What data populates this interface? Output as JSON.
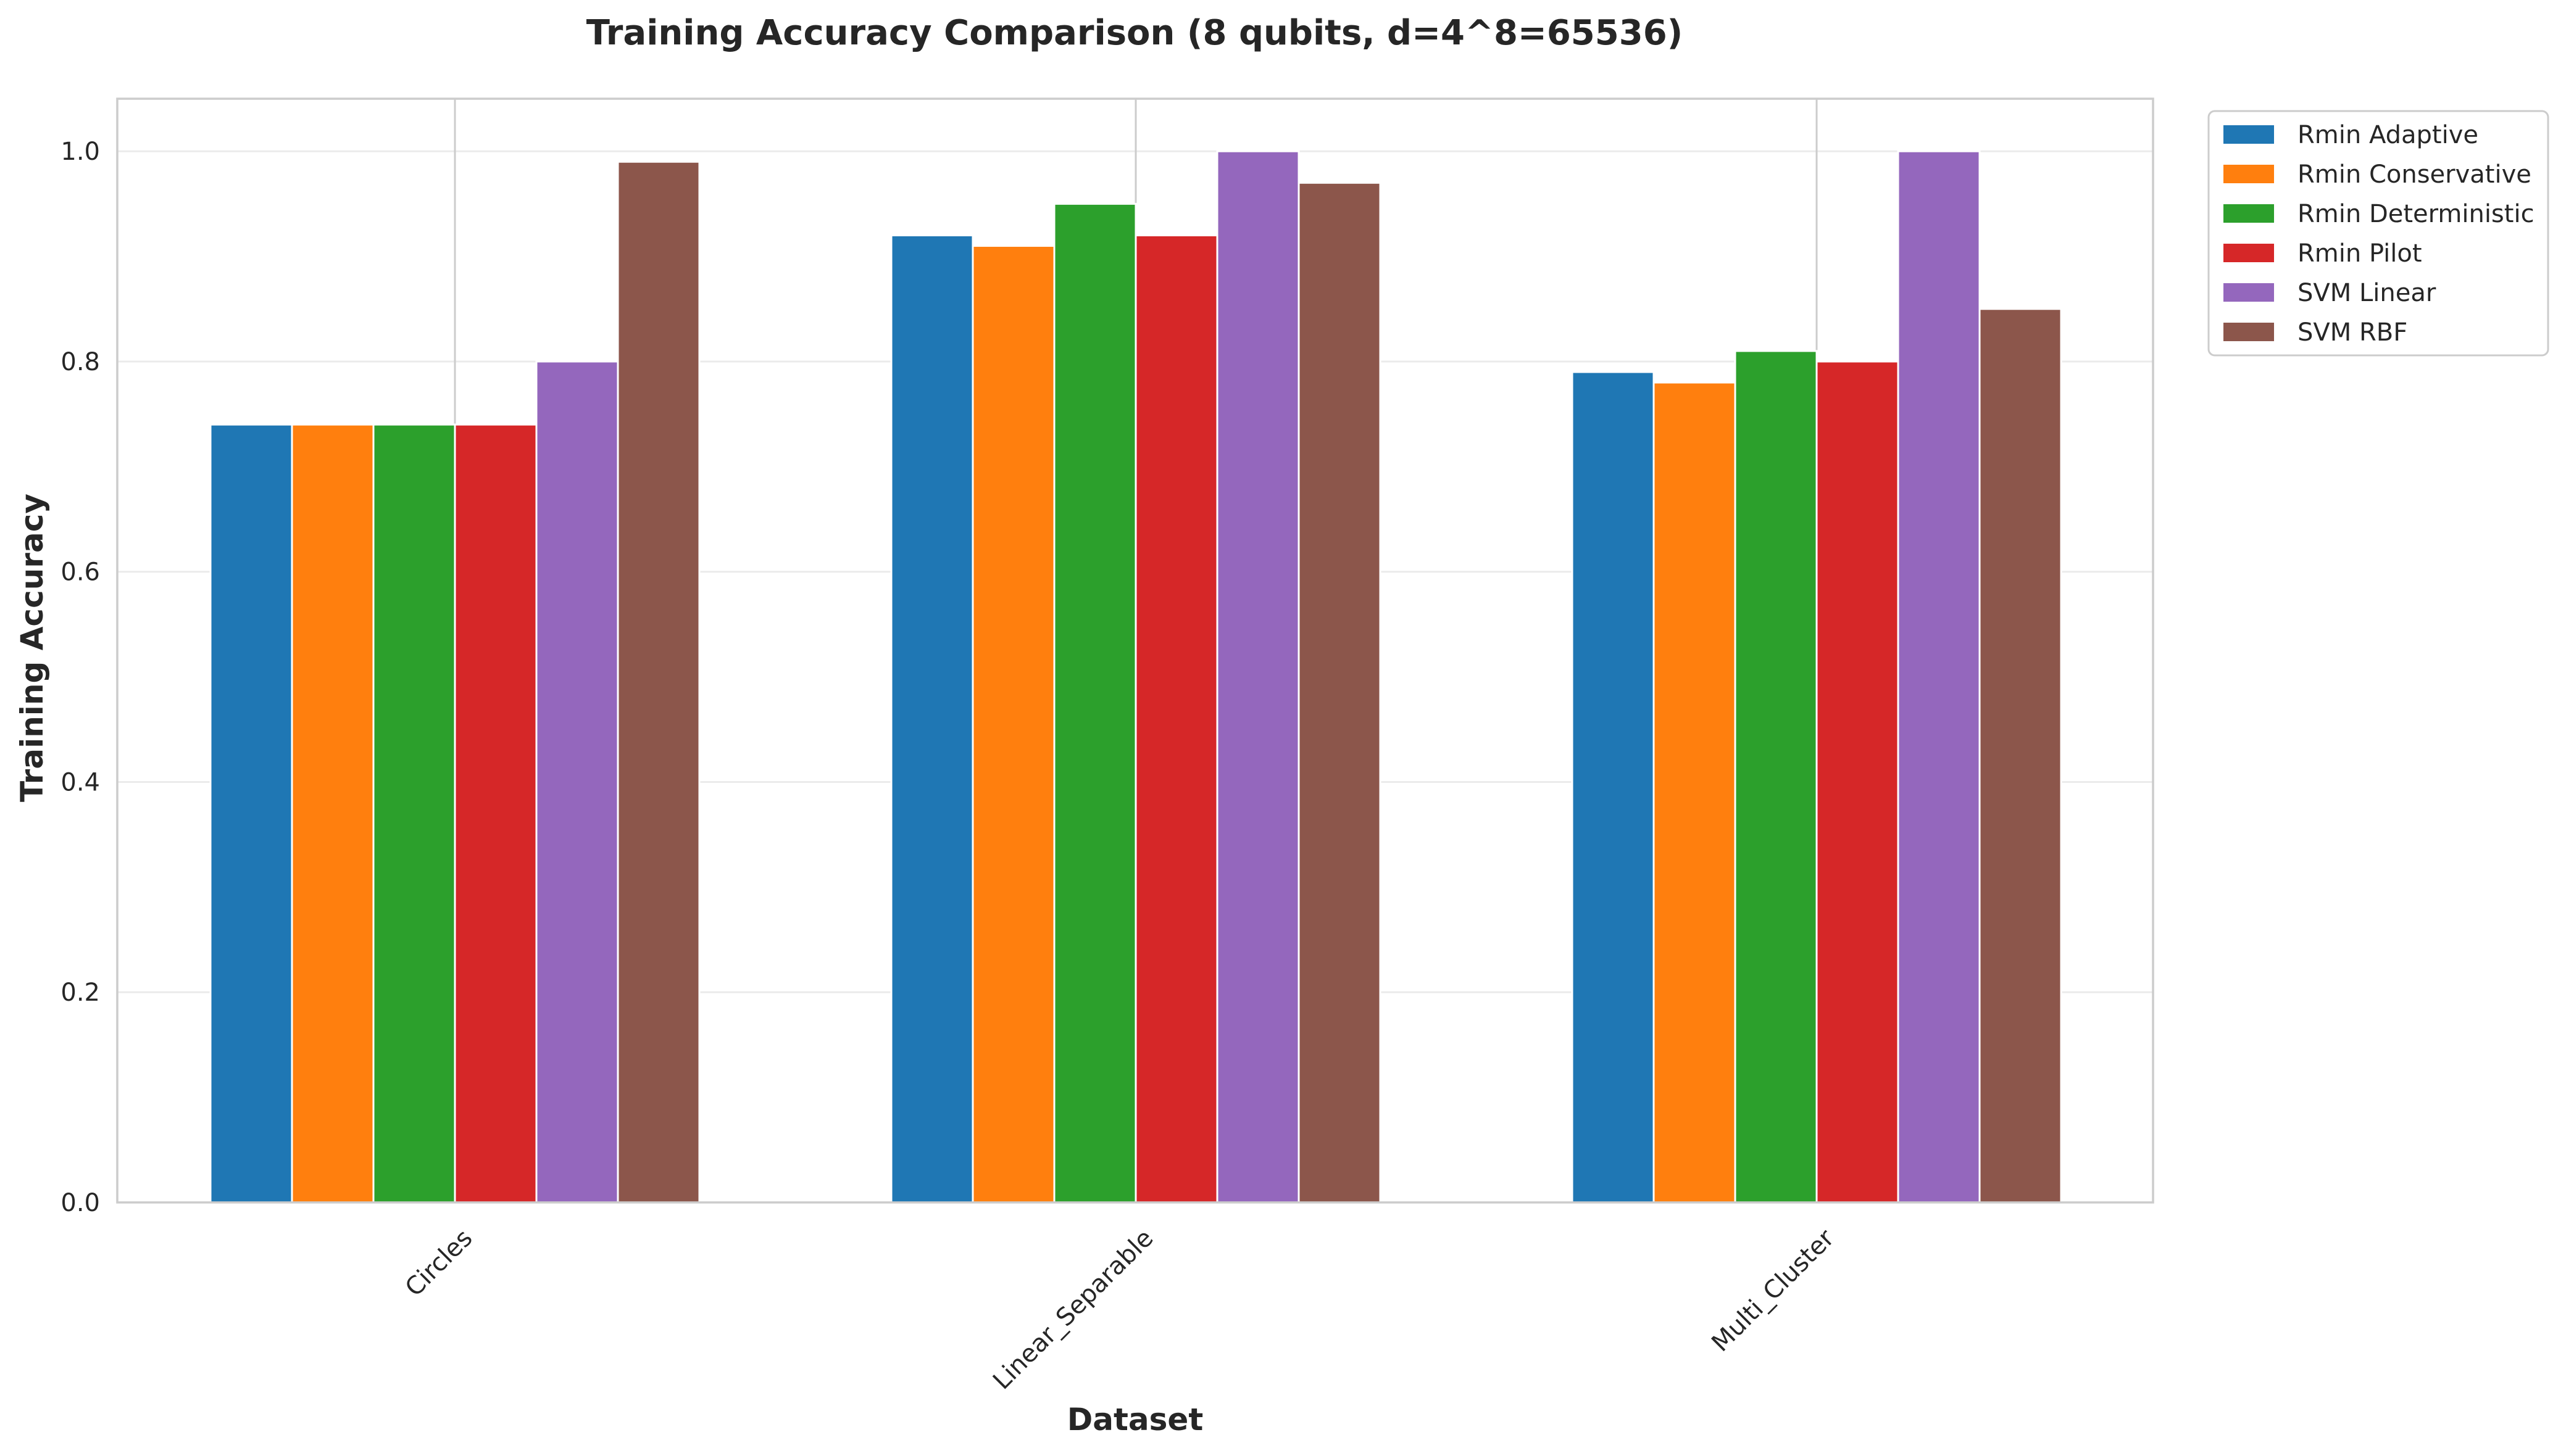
{
  "chart_data": {
    "type": "bar",
    "title": "Training Accuracy Comparison (8 qubits, d=4^8=65536)",
    "xlabel": "Dataset",
    "ylabel": "Training Accuracy",
    "categories": [
      "Circles",
      "Linear_Separable",
      "Multi_Cluster"
    ],
    "ylim": [
      0,
      1.05
    ],
    "yticks": [
      "0.0",
      "0.2",
      "0.4",
      "0.6",
      "0.8",
      "1.0"
    ],
    "grid": true,
    "legend_position": "outside top-right",
    "series": [
      {
        "name": "Rmin Adaptive",
        "color": "#1f77b4",
        "values": [
          0.74,
          0.92,
          0.79
        ]
      },
      {
        "name": "Rmin Conservative",
        "color": "#ff7f0e",
        "values": [
          0.74,
          0.91,
          0.78
        ]
      },
      {
        "name": "Rmin Deterministic",
        "color": "#2ca02c",
        "values": [
          0.74,
          0.95,
          0.81
        ]
      },
      {
        "name": "Rmin Pilot",
        "color": "#d62728",
        "values": [
          0.74,
          0.92,
          0.8
        ]
      },
      {
        "name": "SVM Linear",
        "color": "#9467bd",
        "values": [
          0.8,
          1.0,
          1.0
        ]
      },
      {
        "name": "SVM RBF",
        "color": "#8c564b",
        "values": [
          0.99,
          0.97,
          0.85
        ]
      }
    ]
  }
}
